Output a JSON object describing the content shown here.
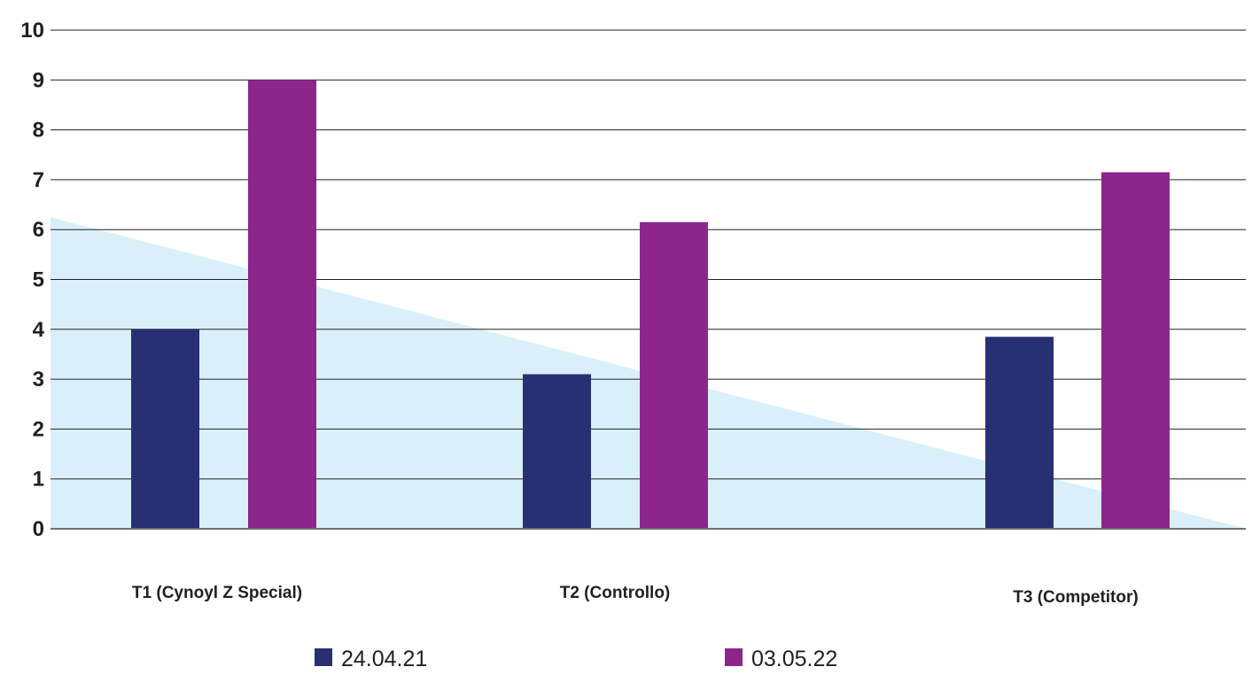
{
  "chart_data": {
    "type": "bar",
    "title": "",
    "xlabel": "",
    "ylabel": "",
    "ylim": [
      0,
      10
    ],
    "yticks": [
      0,
      1,
      2,
      3,
      4,
      5,
      6,
      7,
      8,
      9,
      10
    ],
    "grid": true,
    "categories": [
      "T1 (Cynoyl Z Special)",
      "T2 (Controllo)",
      "T3 (Competitor)"
    ],
    "series": [
      {
        "name": "24.04.21",
        "color": "#292f73",
        "values": [
          4.0,
          3.1,
          3.85
        ]
      },
      {
        "name": "03.05.22",
        "color": "#8c268c",
        "values": [
          9.0,
          6.15,
          7.15
        ]
      }
    ],
    "background_shape": {
      "type": "triangle",
      "color": "#d9f0fa",
      "left_value": 6.25,
      "right_value": 0
    },
    "legend": {
      "position": "bottom-center"
    }
  }
}
